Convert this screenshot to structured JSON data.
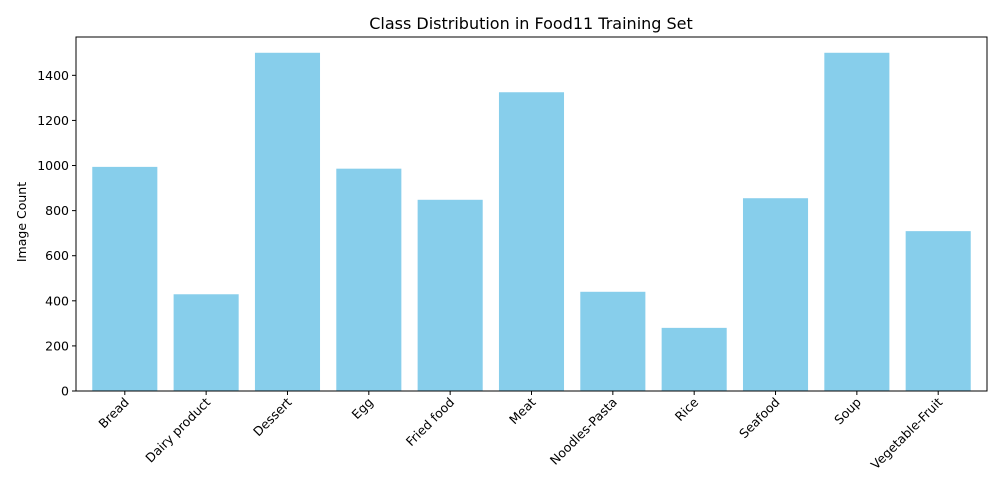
{
  "chart_data": {
    "type": "bar",
    "title": "Class Distribution in Food11 Training Set",
    "xlabel": "",
    "ylabel": "Image Count",
    "categories": [
      "Bread",
      "Dairy product",
      "Dessert",
      "Egg",
      "Fried food",
      "Meat",
      "Noodles-Pasta",
      "Rice",
      "Seafood",
      "Soup",
      "Vegetable-Fruit"
    ],
    "values": [
      994,
      429,
      1500,
      986,
      848,
      1325,
      440,
      280,
      855,
      1500,
      709
    ],
    "ylim": [
      0,
      1570
    ],
    "yticks": [
      0,
      200,
      400,
      600,
      800,
      1000,
      1200,
      1400
    ],
    "bar_color": "#87ceeb",
    "grid": false,
    "legend": "none",
    "xtick_rotation_deg": 45
  }
}
